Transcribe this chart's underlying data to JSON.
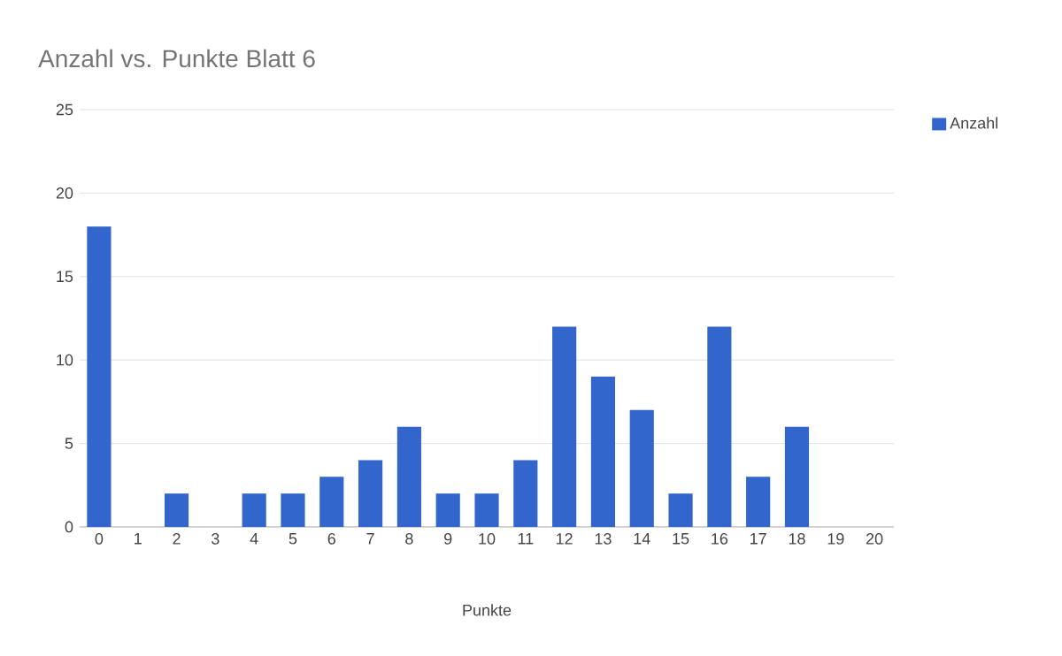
{
  "chart_data": {
    "type": "bar",
    "title": "Anzahl vs. Punkte Blatt 6",
    "xlabel": "Punkte",
    "categories": [
      "0",
      "1",
      "2",
      "3",
      "4",
      "5",
      "6",
      "7",
      "8",
      "9",
      "10",
      "11",
      "12",
      "13",
      "14",
      "15",
      "16",
      "17",
      "18",
      "19",
      "20"
    ],
    "series": [
      {
        "name": "Anzahl",
        "color": "#3366cc",
        "values": [
          18,
          0,
          2,
          0,
          2,
          2,
          3,
          4,
          6,
          2,
          2,
          4,
          12,
          9,
          7,
          2,
          12,
          3,
          6,
          0,
          0
        ]
      }
    ],
    "ylim": [
      0,
      25
    ],
    "yticks": [
      0,
      5,
      10,
      15,
      20,
      25
    ],
    "grid": "y",
    "legend": "top right"
  }
}
